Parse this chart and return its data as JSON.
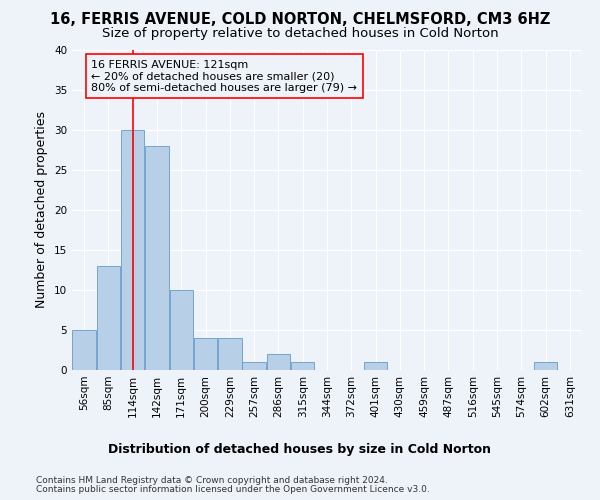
{
  "title_line1": "16, FERRIS AVENUE, COLD NORTON, CHELMSFORD, CM3 6HZ",
  "title_line2": "Size of property relative to detached houses in Cold Norton",
  "xlabel": "Distribution of detached houses by size in Cold Norton",
  "ylabel": "Number of detached properties",
  "bar_labels": [
    "56sqm",
    "85sqm",
    "114sqm",
    "142sqm",
    "171sqm",
    "200sqm",
    "229sqm",
    "257sqm",
    "286sqm",
    "315sqm",
    "344sqm",
    "372sqm",
    "401sqm",
    "430sqm",
    "459sqm",
    "487sqm",
    "516sqm",
    "545sqm",
    "574sqm",
    "602sqm",
    "631sqm"
  ],
  "bar_values": [
    5,
    13,
    30,
    28,
    10,
    4,
    4,
    1,
    2,
    1,
    0,
    0,
    1,
    0,
    0,
    0,
    0,
    0,
    0,
    1,
    0
  ],
  "bar_color": "#b8cfe8",
  "bar_edgecolor": "#6699cc",
  "ylim": [
    0,
    40
  ],
  "yticks": [
    0,
    5,
    10,
    15,
    20,
    25,
    30,
    35,
    40
  ],
  "red_line_x": 2.0,
  "annotation_text": "16 FERRIS AVENUE: 121sqm\n← 20% of detached houses are smaller (20)\n80% of semi-detached houses are larger (79) →",
  "footer_line1": "Contains HM Land Registry data © Crown copyright and database right 2024.",
  "footer_line2": "Contains public sector information licensed under the Open Government Licence v3.0.",
  "background_color": "#eef2f9",
  "grid_color": "#ffffff",
  "title_fontsize": 10.5,
  "subtitle_fontsize": 9.5,
  "ylabel_fontsize": 9,
  "xlabel_fontsize": 9,
  "tick_fontsize": 7.5,
  "annotation_fontsize": 8,
  "footer_fontsize": 6.5
}
